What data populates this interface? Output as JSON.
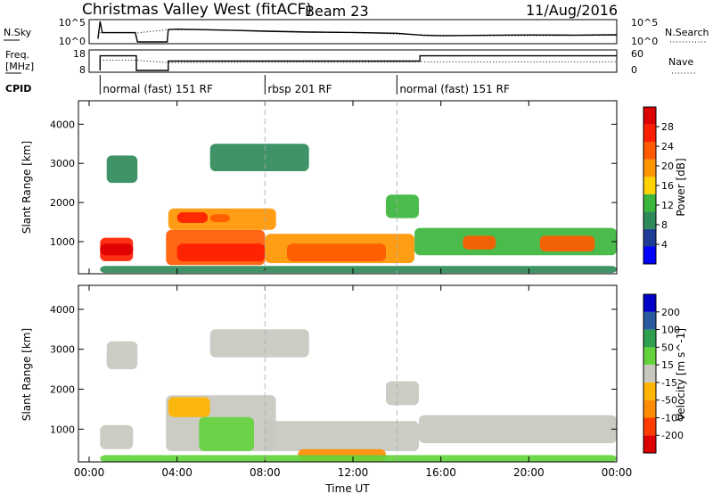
{
  "title": {
    "station": "Christmas Valley West (fitACF)",
    "beam": "Beam 23",
    "date": "11/Aug/2016"
  },
  "colors": {
    "power_scale": [
      "#0000ff",
      "#1e3c96",
      "#2f8a5a",
      "#3cb63c",
      "#ffd200",
      "#ff9600",
      "#ff5a00",
      "#ff1e00",
      "#dc0000"
    ],
    "velocity_scale": [
      "#dc0000",
      "#ff3c00",
      "#ff8c00",
      "#ffb400",
      "#c8c8c0",
      "#64d23c",
      "#2fa050",
      "#2a5aa0",
      "#0000c8"
    ]
  },
  "chart_data": [
    {
      "type": "line",
      "name": "noise-panel",
      "left_label": "N.Sky",
      "right_label": "N.Search",
      "left_ticks": [
        "10^5",
        "10^0"
      ],
      "right_ticks": [
        "10^5",
        "10^0"
      ],
      "series": [
        {
          "name": "N.Sky",
          "style": "solid",
          "x": [
            0.4,
            0.5,
            0.6,
            2.1,
            2.2,
            3.55,
            3.6,
            4,
            6,
            8,
            10,
            12,
            14,
            15.2,
            16,
            18,
            20,
            22,
            24
          ],
          "y_frac": [
            0.15,
            1.0,
            0.45,
            0.45,
            0.0,
            0.0,
            0.6,
            0.62,
            0.58,
            0.52,
            0.48,
            0.46,
            0.42,
            0.32,
            0.3,
            0.32,
            0.34,
            0.33,
            0.35
          ]
        },
        {
          "name": "N.Search",
          "style": "dotted",
          "x": [
            0.5,
            2.1,
            3.6,
            8,
            12,
            15,
            18,
            24
          ],
          "y_frac": [
            0.45,
            0.43,
            0.6,
            0.55,
            0.45,
            0.35,
            0.3,
            0.32
          ]
        }
      ]
    },
    {
      "type": "line",
      "name": "freq-nave-panel",
      "left_label_lines": [
        "Freq.",
        "[MHz]"
      ],
      "right_label": "Nave",
      "left_ticks": [
        "18",
        "8"
      ],
      "right_ticks": [
        "60",
        "0"
      ],
      "series": [
        {
          "name": "Freq",
          "style": "solid",
          "x": [
            0.5,
            0.5,
            2.15,
            2.15,
            3.6,
            3.6,
            15.05,
            15.05,
            24
          ],
          "y_frac": [
            0.0,
            0.78,
            0.78,
            0.0,
            0.0,
            0.5,
            0.5,
            0.78,
            0.78
          ]
        },
        {
          "name": "Nave",
          "style": "dotted",
          "x": [
            0.5,
            2.15,
            3.6,
            8,
            12,
            15,
            18,
            24
          ],
          "y_frac": [
            0.55,
            0.55,
            0.42,
            0.45,
            0.44,
            0.46,
            0.45,
            0.46
          ]
        }
      ]
    },
    {
      "type": "table",
      "name": "cpid-row",
      "label": "CPID",
      "segments": [
        {
          "start": 0.5,
          "label": "normal (fast) 151 RF"
        },
        {
          "start": 8.0,
          "label": "rbsp 201 RF"
        },
        {
          "start": 14.0,
          "label": "normal (fast) 151 RF"
        }
      ],
      "dividers_hours": [
        8,
        14
      ]
    },
    {
      "type": "heatmap",
      "name": "power-panel",
      "ylabel": "Slant Range [km]",
      "xlim": [
        0,
        24
      ],
      "ylim": [
        180,
        4600
      ],
      "yticks": [
        1000,
        2000,
        3000,
        4000
      ],
      "colorbar_label": "Power [dB]",
      "colorbar_ticks": [
        4,
        8,
        12,
        16,
        20,
        24,
        28
      ],
      "colorbar_range": [
        0,
        32
      ],
      "regions": [
        {
          "x": [
            0.5,
            2.0
          ],
          "r": [
            500,
            1100
          ],
          "level": 7
        },
        {
          "x": [
            0.5,
            2.0
          ],
          "r": [
            650,
            950
          ],
          "level": 8
        },
        {
          "x": [
            3.5,
            8.0
          ],
          "r": [
            400,
            1300
          ],
          "level": 6
        },
        {
          "x": [
            4.0,
            8.0
          ],
          "r": [
            500,
            950
          ],
          "level": 7
        },
        {
          "x": [
            3.6,
            8.5
          ],
          "r": [
            1300,
            1850
          ],
          "level": 5
        },
        {
          "x": [
            4.0,
            5.4
          ],
          "r": [
            1480,
            1750
          ],
          "level": 7
        },
        {
          "x": [
            5.5,
            6.4
          ],
          "r": [
            1500,
            1700
          ],
          "level": 6
        },
        {
          "x": [
            8.0,
            14.8
          ],
          "r": [
            450,
            1200
          ],
          "level": 5
        },
        {
          "x": [
            9.0,
            13.5
          ],
          "r": [
            500,
            950
          ],
          "level": 6
        },
        {
          "x": [
            14.8,
            24.0
          ],
          "r": [
            650,
            1350
          ],
          "level": 3
        },
        {
          "x": [
            17.0,
            18.5
          ],
          "r": [
            800,
            1150
          ],
          "level": 6
        },
        {
          "x": [
            20.5,
            23.0
          ],
          "r": [
            750,
            1150
          ],
          "level": 6
        },
        {
          "x": [
            13.5,
            15.0
          ],
          "r": [
            1600,
            2200
          ],
          "level": 3
        },
        {
          "x": [
            5.5,
            10.0
          ],
          "r": [
            2800,
            3500
          ],
          "level": 2
        },
        {
          "x": [
            0.8,
            2.2
          ],
          "r": [
            2500,
            3200
          ],
          "level": 2
        },
        {
          "x": [
            0.5,
            24.0
          ],
          "r": [
            200,
            380
          ],
          "level": 2
        }
      ]
    },
    {
      "type": "heatmap",
      "name": "velocity-panel",
      "ylabel": "Slant Range [km]",
      "xlabel": "Time UT",
      "xlim": [
        0,
        24
      ],
      "ylim": [
        180,
        4600
      ],
      "yticks": [
        1000,
        2000,
        3000,
        4000
      ],
      "xtick_labels": [
        "00:00",
        "04:00",
        "08:00",
        "12:00",
        "16:00",
        "20:00",
        "00:00"
      ],
      "colorbar_label": "Velocity [m s^-1]",
      "colorbar_ticks": [
        "-200",
        "-100",
        "-50",
        "-15",
        "15",
        "50",
        "100",
        "200"
      ],
      "regions": [
        {
          "x": [
            0.5,
            2.0
          ],
          "r": [
            500,
            1100
          ],
          "level": 4
        },
        {
          "x": [
            3.5,
            8.5
          ],
          "r": [
            450,
            1850
          ],
          "level": 4
        },
        {
          "x": [
            3.6,
            5.5
          ],
          "r": [
            1300,
            1800
          ],
          "level": 3
        },
        {
          "x": [
            5.0,
            7.5
          ],
          "r": [
            450,
            1300
          ],
          "level": 5
        },
        {
          "x": [
            8.0,
            15.0
          ],
          "r": [
            450,
            1200
          ],
          "level": 4
        },
        {
          "x": [
            9.5,
            13.5
          ],
          "r": [
            200,
            500
          ],
          "level": 2
        },
        {
          "x": [
            15.0,
            24.0
          ],
          "r": [
            650,
            1350
          ],
          "level": 4
        },
        {
          "x": [
            13.5,
            15.0
          ],
          "r": [
            1600,
            2200
          ],
          "level": 4
        },
        {
          "x": [
            5.5,
            10.0
          ],
          "r": [
            2800,
            3500
          ],
          "level": 4
        },
        {
          "x": [
            0.8,
            2.2
          ],
          "r": [
            2500,
            3200
          ],
          "level": 4
        },
        {
          "x": [
            0.5,
            24.0
          ],
          "r": [
            180,
            350
          ],
          "level": 5
        }
      ]
    }
  ]
}
